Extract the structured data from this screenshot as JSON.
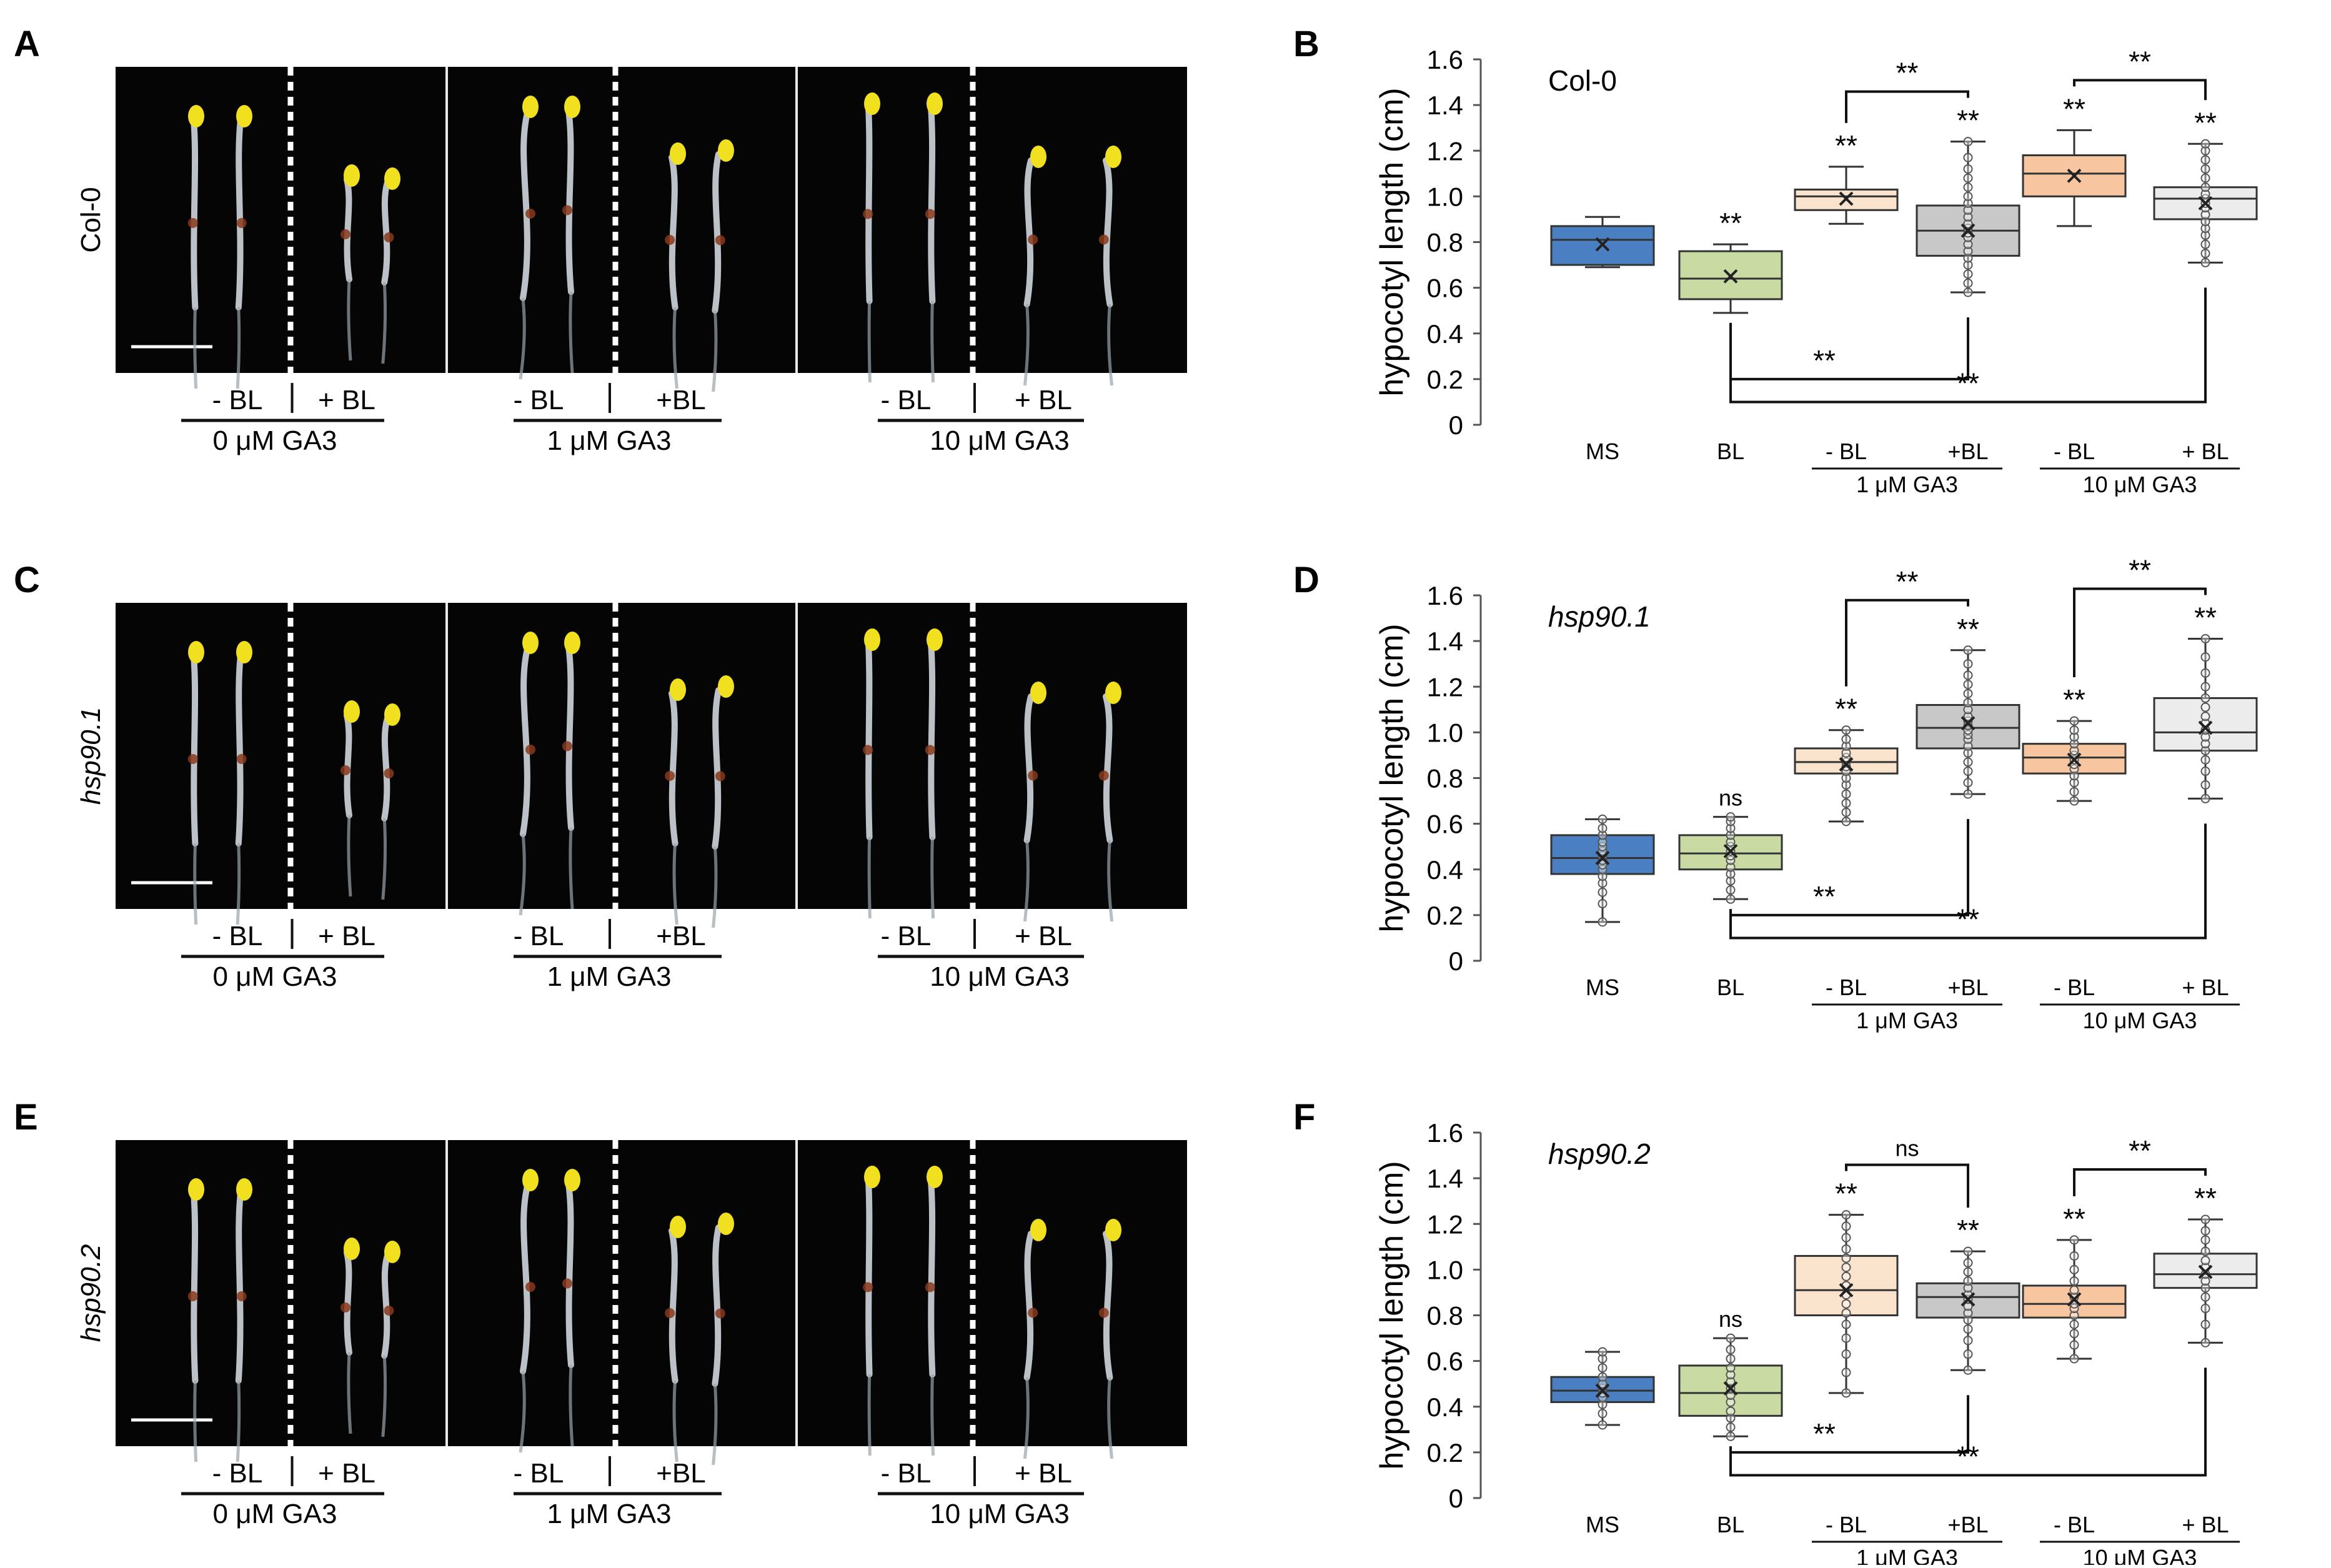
{
  "rows": [
    {
      "photo_letter": "A",
      "chart_letter": "B",
      "genotype": "Col-0",
      "genotype_italic": false,
      "photo_groups": [
        {
          "left": "- BL",
          "right": "+ BL",
          "ga": "0 μM GA3"
        },
        {
          "left": "- BL",
          "right": "+BL",
          "ga": "1 μM GA3"
        },
        {
          "left": "- BL",
          "right": "+ BL",
          "ga": "10 μM GA3"
        }
      ]
    },
    {
      "photo_letter": "C",
      "chart_letter": "D",
      "genotype": "hsp90.1",
      "genotype_italic": true,
      "photo_groups": [
        {
          "left": "- BL",
          "right": "+ BL",
          "ga": "0 μM GA3"
        },
        {
          "left": "- BL",
          "right": "+BL",
          "ga": "1 μM GA3"
        },
        {
          "left": "- BL",
          "right": "+ BL",
          "ga": "10 μM GA3"
        }
      ]
    },
    {
      "photo_letter": "E",
      "chart_letter": "F",
      "genotype": "hsp90.2",
      "genotype_italic": true,
      "photo_groups": [
        {
          "left": "- BL",
          "right": "+ BL",
          "ga": "0 μM GA3"
        },
        {
          "left": "- BL",
          "right": "+BL",
          "ga": "1 μM GA3"
        },
        {
          "left": "- BL",
          "right": "+ BL",
          "ga": "10 μM GA3"
        }
      ]
    }
  ],
  "colors": {
    "MS": "#4a7fc1",
    "BL": "#c9dba3",
    "GA1_minusBL": "#f9e3cc",
    "GA1_plusBL": "#c8c8c8",
    "GA10_minusBL": "#f7c6a1",
    "GA10_plusBL": "#ececec",
    "photo_bg": "#050505",
    "hypocotyl": "#cfd6dc",
    "cotyledon": "#f0e020"
  },
  "chart_data": [
    {
      "type": "box",
      "panel": "B",
      "genotype_label": "Col-0",
      "ylabel": "hypocotyl length (cm)",
      "ylim": [
        0,
        1.6
      ],
      "yticks": [
        "0",
        "0.2",
        "0.4",
        "0.6",
        "0.8",
        "1.0",
        "1.2",
        "1.4",
        "1.6"
      ],
      "categories": [
        "MS",
        "BL",
        "- BL",
        "+BL",
        "- BL",
        "+ BL"
      ],
      "group_labels": [
        {
          "label": "1 μM GA3",
          "members": [
            2,
            3
          ]
        },
        {
          "label": "10 μM GA3",
          "members": [
            4,
            5
          ]
        }
      ],
      "series": [
        {
          "name": "MS",
          "min": 0.69,
          "q1": 0.7,
          "median": 0.81,
          "q3": 0.87,
          "max": 0.91,
          "mean": 0.79
        },
        {
          "name": "BL",
          "min": 0.49,
          "q1": 0.55,
          "median": 0.64,
          "q3": 0.76,
          "max": 0.79,
          "mean": 0.65,
          "sig": "**"
        },
        {
          "name": "- BL",
          "min": 0.88,
          "q1": 0.94,
          "median": 1.0,
          "q3": 1.03,
          "max": 1.13,
          "mean": 0.99,
          "sig": "**"
        },
        {
          "name": "+BL",
          "min": 0.58,
          "q1": 0.74,
          "median": 0.85,
          "q3": 0.96,
          "max": 1.24,
          "mean": 0.85,
          "sig": "**",
          "points": [
            0.58,
            0.62,
            0.66,
            0.7,
            0.73,
            0.76,
            0.79,
            0.82,
            0.84,
            0.86,
            0.88,
            0.91,
            0.94,
            0.97,
            1.0,
            1.04,
            1.08,
            1.12,
            1.17,
            1.24
          ]
        },
        {
          "name": "- BL",
          "min": 0.87,
          "q1": 1.0,
          "median": 1.1,
          "q3": 1.18,
          "max": 1.29,
          "mean": 1.09,
          "sig": "**"
        },
        {
          "name": "+ BL",
          "min": 0.71,
          "q1": 0.9,
          "median": 0.99,
          "q3": 1.04,
          "max": 1.23,
          "mean": 0.97,
          "sig": "**",
          "points": [
            0.71,
            0.75,
            0.79,
            0.83,
            0.86,
            0.89,
            0.92,
            0.95,
            0.97,
            0.99,
            1.01,
            1.04,
            1.08,
            1.12,
            1.16,
            1.2,
            1.23
          ]
        }
      ],
      "comparisons": [
        {
          "from": 2,
          "to": 3,
          "label": "**",
          "side": "top"
        },
        {
          "from": 4,
          "to": 5,
          "label": "**",
          "side": "top"
        },
        {
          "from": 1,
          "to": 3,
          "label": "**",
          "side": "bottom"
        },
        {
          "from": 1,
          "to": 5,
          "label": "**",
          "side": "bottom"
        }
      ]
    },
    {
      "type": "box",
      "panel": "D",
      "genotype_label": "hsp90.1",
      "ylabel": "hypocotyl length (cm)",
      "ylim": [
        0,
        1.6
      ],
      "yticks": [
        "0",
        "0.2",
        "0.4",
        "0.6",
        "0.8",
        "1.0",
        "1.2",
        "1.4",
        "1.6"
      ],
      "categories": [
        "MS",
        "BL",
        "- BL",
        "+BL",
        "- BL",
        "+ BL"
      ],
      "group_labels": [
        {
          "label": "1 μM GA3",
          "members": [
            2,
            3
          ]
        },
        {
          "label": "10 μM GA3",
          "members": [
            4,
            5
          ]
        }
      ],
      "series": [
        {
          "name": "MS",
          "min": 0.17,
          "q1": 0.38,
          "median": 0.45,
          "q3": 0.55,
          "max": 0.62,
          "mean": 0.45,
          "points": [
            0.17,
            0.25,
            0.3,
            0.34,
            0.37,
            0.4,
            0.42,
            0.44,
            0.46,
            0.48,
            0.5,
            0.52,
            0.55,
            0.58,
            0.62
          ]
        },
        {
          "name": "BL",
          "min": 0.27,
          "q1": 0.4,
          "median": 0.47,
          "q3": 0.55,
          "max": 0.63,
          "mean": 0.48,
          "sig": "ns",
          "points": [
            0.27,
            0.31,
            0.35,
            0.38,
            0.41,
            0.44,
            0.46,
            0.48,
            0.5,
            0.52,
            0.55,
            0.58,
            0.61,
            0.63
          ]
        },
        {
          "name": "- BL",
          "min": 0.61,
          "q1": 0.82,
          "median": 0.87,
          "q3": 0.93,
          "max": 1.01,
          "mean": 0.86,
          "sig": "**",
          "points": [
            0.61,
            0.65,
            0.69,
            0.73,
            0.77,
            0.8,
            0.83,
            0.85,
            0.87,
            0.89,
            0.91,
            0.94,
            0.97,
            1.01
          ]
        },
        {
          "name": "+BL",
          "min": 0.73,
          "q1": 0.93,
          "median": 1.02,
          "q3": 1.12,
          "max": 1.36,
          "mean": 1.04,
          "sig": "**",
          "points": [
            0.73,
            0.78,
            0.83,
            0.87,
            0.91,
            0.94,
            0.97,
            0.99,
            1.01,
            1.03,
            1.05,
            1.07,
            1.1,
            1.13,
            1.17,
            1.21,
            1.25,
            1.3,
            1.36
          ]
        },
        {
          "name": "- BL",
          "min": 0.7,
          "q1": 0.82,
          "median": 0.89,
          "q3": 0.95,
          "max": 1.05,
          "mean": 0.88,
          "sig": "**",
          "points": [
            0.7,
            0.74,
            0.78,
            0.81,
            0.84,
            0.86,
            0.88,
            0.9,
            0.92,
            0.95,
            0.98,
            1.01,
            1.05
          ]
        },
        {
          "name": "+ BL",
          "min": 0.71,
          "q1": 0.92,
          "median": 1.0,
          "q3": 1.15,
          "max": 1.41,
          "mean": 1.02,
          "sig": "**",
          "points": [
            0.71,
            0.77,
            0.83,
            0.88,
            0.92,
            0.95,
            0.98,
            1.01,
            1.04,
            1.07,
            1.11,
            1.15,
            1.2,
            1.26,
            1.33,
            1.41
          ]
        }
      ],
      "comparisons": [
        {
          "from": 2,
          "to": 3,
          "label": "**",
          "side": "top"
        },
        {
          "from": 4,
          "to": 5,
          "label": "**",
          "side": "top"
        },
        {
          "from": 1,
          "to": 3,
          "label": "**",
          "side": "bottom"
        },
        {
          "from": 1,
          "to": 5,
          "label": "**",
          "side": "bottom"
        }
      ]
    },
    {
      "type": "box",
      "panel": "F",
      "genotype_label": "hsp90.2",
      "ylabel": "hypocotyl length (cm)",
      "ylim": [
        0,
        1.6
      ],
      "yticks": [
        "0",
        "0.2",
        "0.4",
        "0.6",
        "0.8",
        "1.0",
        "1.2",
        "1.4",
        "1.6"
      ],
      "categories": [
        "MS",
        "BL",
        "- BL",
        "+BL",
        "- BL",
        "+ BL"
      ],
      "group_labels": [
        {
          "label": "1 μM GA3",
          "members": [
            2,
            3
          ]
        },
        {
          "label": "10 μM GA3",
          "members": [
            4,
            5
          ]
        }
      ],
      "series": [
        {
          "name": "MS",
          "min": 0.32,
          "q1": 0.42,
          "median": 0.47,
          "q3": 0.53,
          "max": 0.64,
          "mean": 0.47,
          "points": [
            0.32,
            0.37,
            0.41,
            0.44,
            0.46,
            0.48,
            0.5,
            0.53,
            0.57,
            0.61,
            0.64
          ]
        },
        {
          "name": "BL",
          "min": 0.27,
          "q1": 0.36,
          "median": 0.46,
          "q3": 0.58,
          "max": 0.7,
          "mean": 0.48,
          "sig": "ns",
          "points": [
            0.27,
            0.31,
            0.35,
            0.38,
            0.42,
            0.45,
            0.48,
            0.51,
            0.54,
            0.57,
            0.61,
            0.65,
            0.7
          ]
        },
        {
          "name": "- BL",
          "min": 0.46,
          "q1": 0.8,
          "median": 0.91,
          "q3": 1.06,
          "max": 1.24,
          "mean": 0.91,
          "sig": "**",
          "points": [
            0.46,
            0.55,
            0.63,
            0.7,
            0.76,
            0.81,
            0.85,
            0.89,
            0.93,
            0.97,
            1.01,
            1.05,
            1.09,
            1.14,
            1.19,
            1.24
          ]
        },
        {
          "name": "+BL",
          "min": 0.56,
          "q1": 0.79,
          "median": 0.88,
          "q3": 0.94,
          "max": 1.08,
          "mean": 0.87,
          "sig": "**",
          "points": [
            0.56,
            0.63,
            0.69,
            0.74,
            0.78,
            0.81,
            0.84,
            0.87,
            0.89,
            0.92,
            0.95,
            0.99,
            1.03,
            1.08
          ]
        },
        {
          "name": "- BL",
          "min": 0.61,
          "q1": 0.79,
          "median": 0.85,
          "q3": 0.93,
          "max": 1.13,
          "mean": 0.87,
          "sig": "**",
          "points": [
            0.61,
            0.67,
            0.72,
            0.76,
            0.8,
            0.83,
            0.85,
            0.88,
            0.91,
            0.95,
            1.0,
            1.06,
            1.13
          ]
        },
        {
          "name": "+ BL",
          "min": 0.68,
          "q1": 0.92,
          "median": 0.98,
          "q3": 1.07,
          "max": 1.22,
          "mean": 0.99,
          "sig": "**",
          "points": [
            0.68,
            0.76,
            0.83,
            0.88,
            0.92,
            0.95,
            0.98,
            1.01,
            1.04,
            1.08,
            1.13,
            1.17,
            1.22
          ]
        }
      ],
      "comparisons": [
        {
          "from": 2,
          "to": 3,
          "label": "ns",
          "side": "top"
        },
        {
          "from": 4,
          "to": 5,
          "label": "**",
          "side": "top"
        },
        {
          "from": 1,
          "to": 3,
          "label": "**",
          "side": "bottom"
        },
        {
          "from": 1,
          "to": 5,
          "label": "**",
          "side": "bottom"
        }
      ]
    }
  ]
}
